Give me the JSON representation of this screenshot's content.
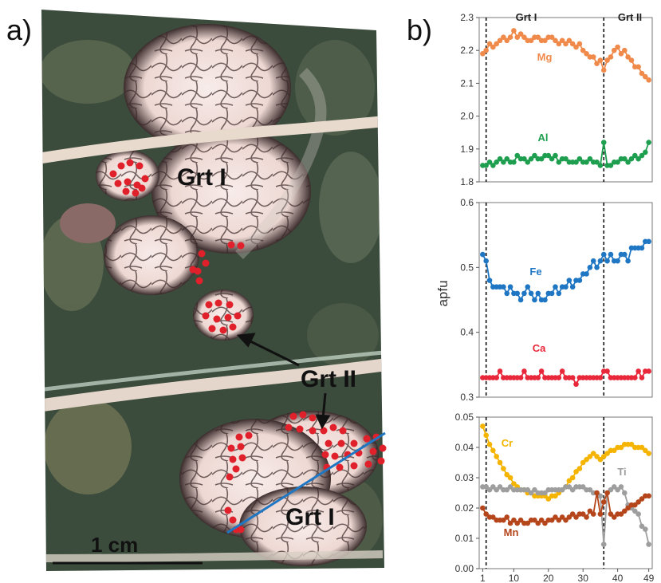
{
  "panels": {
    "a_label": "a)",
    "b_label": "b)"
  },
  "photo": {
    "grt1_top": "Grt I",
    "grt2": "Grt II",
    "grt1_bottom": "Grt I",
    "scale_bar": "1 cm",
    "colors": {
      "matrix": "#3a4a3a",
      "garnet": "#f3e6e3",
      "fracture": "#2a1e1e",
      "vein": "#e8d9cf",
      "spot": "#e0202a",
      "traverse": "#1f77c4",
      "arrow": "#111111"
    }
  },
  "chart_data": {
    "type": "line",
    "xlabel": "",
    "ylabel": "apfu",
    "x_ticks": [
      "1",
      "10",
      "20",
      "30",
      "40",
      "49"
    ],
    "x_range": [
      0,
      50
    ],
    "zone_labels": [
      "Grt I",
      "Grt II"
    ],
    "dividers_x": [
      2,
      36
    ],
    "panels": [
      {
        "name": "top",
        "ylim": [
          1.8,
          2.3
        ],
        "y_ticks": [
          "1.8",
          "1.9",
          "2.0",
          "2.1",
          "2.2",
          "2.3"
        ],
        "series": [
          {
            "name": "Mg",
            "color": "#f08a4b",
            "values": [
              2.19,
              2.2,
              2.22,
              2.21,
              2.22,
              2.23,
              2.24,
              2.23,
              2.24,
              2.26,
              2.24,
              2.25,
              2.24,
              2.23,
              2.23,
              2.24,
              2.24,
              2.23,
              2.23,
              2.24,
              2.24,
              2.23,
              2.22,
              2.23,
              2.22,
              2.23,
              2.22,
              2.21,
              2.22,
              2.2,
              2.19,
              2.18,
              2.18,
              2.16,
              2.17,
              2.14,
              2.17,
              2.18,
              2.2,
              2.21,
              2.19,
              2.2,
              2.18,
              2.17,
              2.15,
              2.15,
              2.13,
              2.12,
              2.11
            ]
          },
          {
            "name": "Al",
            "color": "#1e9e4f",
            "values": [
              1.85,
              1.85,
              1.86,
              1.85,
              1.86,
              1.87,
              1.86,
              1.87,
              1.86,
              1.86,
              1.88,
              1.87,
              1.87,
              1.86,
              1.87,
              1.88,
              1.87,
              1.87,
              1.88,
              1.88,
              1.87,
              1.88,
              1.86,
              1.87,
              1.87,
              1.86,
              1.86,
              1.86,
              1.87,
              1.86,
              1.86,
              1.87,
              1.86,
              1.86,
              1.85,
              1.92,
              1.85,
              1.85,
              1.86,
              1.86,
              1.87,
              1.87,
              1.86,
              1.87,
              1.88,
              1.87,
              1.88,
              1.89,
              1.92
            ]
          }
        ]
      },
      {
        "name": "middle",
        "ylim": [
          0.3,
          0.6
        ],
        "y_ticks": [
          "0.3",
          "0.4",
          "0.5",
          "0.6"
        ],
        "series": [
          {
            "name": "Fe",
            "color": "#1f77c4",
            "values": [
              0.52,
              0.51,
              0.48,
              0.47,
              0.47,
              0.47,
              0.47,
              0.46,
              0.47,
              0.46,
              0.46,
              0.45,
              0.46,
              0.47,
              0.46,
              0.45,
              0.46,
              0.45,
              0.45,
              0.46,
              0.46,
              0.47,
              0.46,
              0.47,
              0.47,
              0.48,
              0.47,
              0.48,
              0.48,
              0.49,
              0.49,
              0.5,
              0.51,
              0.5,
              0.51,
              0.52,
              0.51,
              0.52,
              0.51,
              0.51,
              0.52,
              0.52,
              0.51,
              0.53,
              0.53,
              0.53,
              0.53,
              0.54,
              0.54
            ]
          },
          {
            "name": "Ca",
            "color": "#e8283a",
            "values": [
              0.33,
              0.33,
              0.33,
              0.33,
              0.33,
              0.34,
              0.33,
              0.33,
              0.33,
              0.33,
              0.33,
              0.33,
              0.34,
              0.33,
              0.33,
              0.33,
              0.33,
              0.34,
              0.33,
              0.33,
              0.33,
              0.33,
              0.33,
              0.34,
              0.33,
              0.33,
              0.33,
              0.32,
              0.33,
              0.33,
              0.33,
              0.33,
              0.33,
              0.33,
              0.33,
              0.34,
              0.34,
              0.33,
              0.33,
              0.33,
              0.33,
              0.33,
              0.33,
              0.33,
              0.33,
              0.34,
              0.33,
              0.34,
              0.34
            ]
          }
        ]
      },
      {
        "name": "bottom",
        "ylim": [
          0.0,
          0.05
        ],
        "y_ticks": [
          "0.00",
          "0.01",
          "0.02",
          "0.03",
          "0.04",
          "0.05"
        ],
        "series": [
          {
            "name": "Cr",
            "color": "#f4b400",
            "values": [
              0.047,
              0.044,
              0.041,
              0.039,
              0.037,
              0.035,
              0.033,
              0.031,
              0.03,
              0.028,
              0.027,
              0.026,
              0.026,
              0.025,
              0.025,
              0.024,
              0.024,
              0.024,
              0.024,
              0.023,
              0.024,
              0.024,
              0.025,
              0.026,
              0.027,
              0.029,
              0.03,
              0.032,
              0.033,
              0.035,
              0.036,
              0.037,
              0.038,
              0.037,
              0.036,
              0.037,
              0.038,
              0.039,
              0.039,
              0.04,
              0.04,
              0.041,
              0.041,
              0.041,
              0.04,
              0.04,
              0.04,
              0.039,
              0.038
            ]
          },
          {
            "name": "Ti",
            "color": "#9e9e9e",
            "values": [
              0.027,
              0.027,
              0.026,
              0.027,
              0.026,
              0.027,
              0.026,
              0.026,
              0.027,
              0.026,
              0.026,
              0.026,
              0.026,
              0.026,
              0.025,
              0.026,
              0.025,
              0.025,
              0.025,
              0.026,
              0.026,
              0.026,
              0.026,
              0.026,
              0.027,
              0.027,
              0.026,
              0.027,
              0.027,
              0.027,
              0.026,
              0.026,
              0.025,
              0.025,
              0.024,
              0.008,
              0.025,
              0.026,
              0.027,
              0.026,
              0.027,
              0.025,
              0.021,
              0.02,
              0.019,
              0.018,
              0.014,
              0.013,
              0.008
            ]
          },
          {
            "name": "Mn",
            "color": "#b5451b",
            "values": [
              0.02,
              0.018,
              0.017,
              0.017,
              0.016,
              0.016,
              0.016,
              0.017,
              0.015,
              0.016,
              0.015,
              0.016,
              0.015,
              0.015,
              0.016,
              0.016,
              0.015,
              0.016,
              0.015,
              0.016,
              0.016,
              0.017,
              0.016,
              0.017,
              0.016,
              0.017,
              0.018,
              0.017,
              0.018,
              0.018,
              0.017,
              0.019,
              0.018,
              0.025,
              0.018,
              0.022,
              0.025,
              0.018,
              0.017,
              0.018,
              0.018,
              0.019,
              0.02,
              0.021,
              0.021,
              0.022,
              0.023,
              0.024,
              0.024
            ]
          }
        ]
      }
    ]
  }
}
